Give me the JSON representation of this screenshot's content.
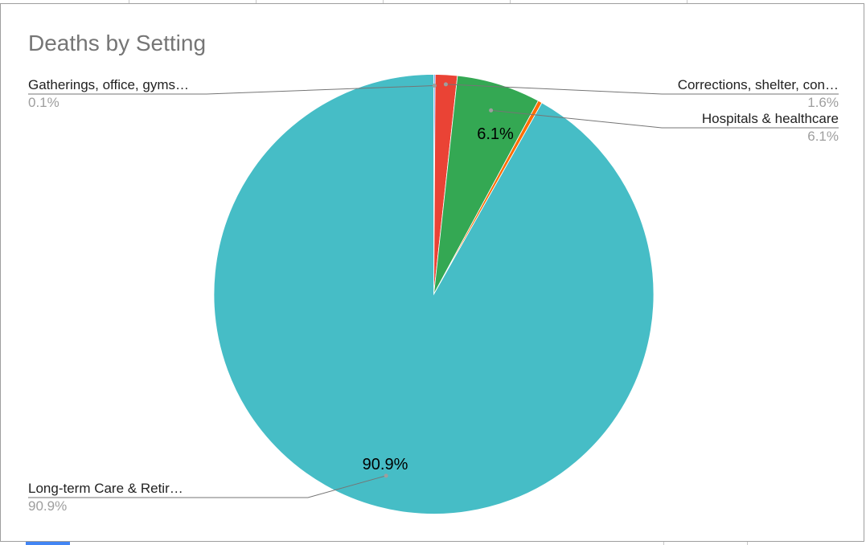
{
  "chart_data": {
    "type": "pie",
    "title": "Deaths by Setting",
    "slices": [
      {
        "label": "Gatherings, office, gyms…",
        "display": "Gatherings, office, gyms…",
        "value": 0.1,
        "pct_label": "0.1%",
        "color": "#4285f4"
      },
      {
        "label": "Corrections, shelter, con…",
        "display": "Corrections, shelter, con…",
        "value": 1.6,
        "pct_label": "1.6%",
        "color": "#ea4335"
      },
      {
        "label": "Hospitals & healthcare",
        "display": "Hospitals & healthcare",
        "value": 6.1,
        "pct_label": "6.1%",
        "color": "#34a853"
      },
      {
        "label": "",
        "display": "",
        "value": 0.3,
        "pct_label": "",
        "color": "#ff6d01"
      },
      {
        "label": "Long-term Care & Retir…",
        "display": "Long-term Care & Retir…",
        "value": 90.9,
        "pct_label": "90.9%",
        "color": "#46bdc6"
      }
    ],
    "inside_labels": [
      "6.1%",
      "90.9%"
    ],
    "legend": "callout-labels",
    "colors": {
      "title": "#757575",
      "label": "#222222",
      "pct": "#9e9e9e",
      "leader": "#757575"
    }
  }
}
